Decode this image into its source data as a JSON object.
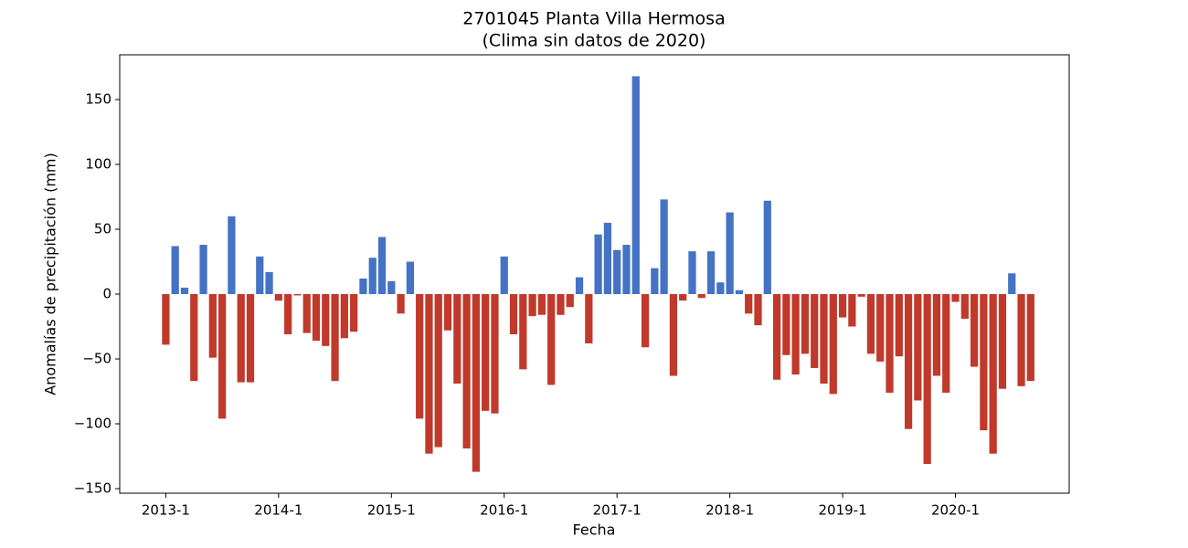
{
  "chart_data": {
    "type": "bar",
    "title": "2701045 Planta Villa Hermosa",
    "subtitle": "(Clima sin datos de 2020)",
    "x_label": "Fecha",
    "y_label": "Anomalías de precipitación (mm)",
    "categories": [
      "2013-1",
      null,
      null,
      null,
      null,
      null,
      null,
      null,
      null,
      null,
      null,
      null,
      "2014-1",
      null,
      null,
      null,
      null,
      null,
      null,
      null,
      null,
      null,
      null,
      null,
      "2015-1",
      null,
      null,
      null,
      null,
      null,
      null,
      null,
      null,
      null,
      null,
      null,
      "2016-1",
      null,
      null,
      null,
      null,
      null,
      null,
      null,
      null,
      null,
      null,
      null,
      "2017-1",
      null,
      null,
      null,
      null,
      null,
      null,
      null,
      null,
      null,
      null,
      null,
      "2018-1",
      null,
      null,
      null,
      null,
      null,
      null,
      null,
      null,
      null,
      null,
      null,
      "2019-1",
      null,
      null,
      null,
      null,
      null,
      null,
      null,
      null,
      null,
      null,
      null,
      "2020-1",
      null,
      null,
      null,
      null,
      null,
      null,
      null,
      null
    ],
    "values": [
      -39,
      37,
      5,
      -67,
      38,
      -49,
      -96,
      60,
      -68,
      -68,
      29,
      17,
      -5,
      -31,
      -1,
      -30,
      -36,
      -40,
      -67,
      -34,
      -29,
      12,
      28,
      44,
      10,
      -15,
      25,
      -96,
      -123,
      -118,
      -28,
      -69,
      -119,
      -137,
      -90,
      -92,
      29,
      -31,
      -58,
      -17,
      -16,
      -70,
      -16,
      -10,
      13,
      -38,
      46,
      55,
      34,
      38,
      168,
      -41,
      20,
      73,
      -63,
      -5,
      33,
      -3,
      33,
      9,
      63,
      3,
      -15,
      -24,
      72,
      -66,
      -47,
      -62,
      -46,
      -57,
      -69,
      -77,
      -18,
      -25,
      -2,
      -46,
      -52,
      -76,
      -48,
      -104,
      -82,
      -131,
      -63,
      -76,
      -6,
      -19,
      -56,
      -105,
      -123,
      -73,
      16,
      -71,
      -67
    ],
    "color_positive": "#4472c4",
    "color_negative": "#c0392b",
    "ylim": [
      -153.5,
      184.5
    ],
    "yticks": [
      {
        "value": -150,
        "label": "−150"
      },
      {
        "value": -100,
        "label": "−100"
      },
      {
        "value": -50,
        "label": "−50"
      },
      0,
      50,
      100,
      150
    ],
    "grid": false
  }
}
